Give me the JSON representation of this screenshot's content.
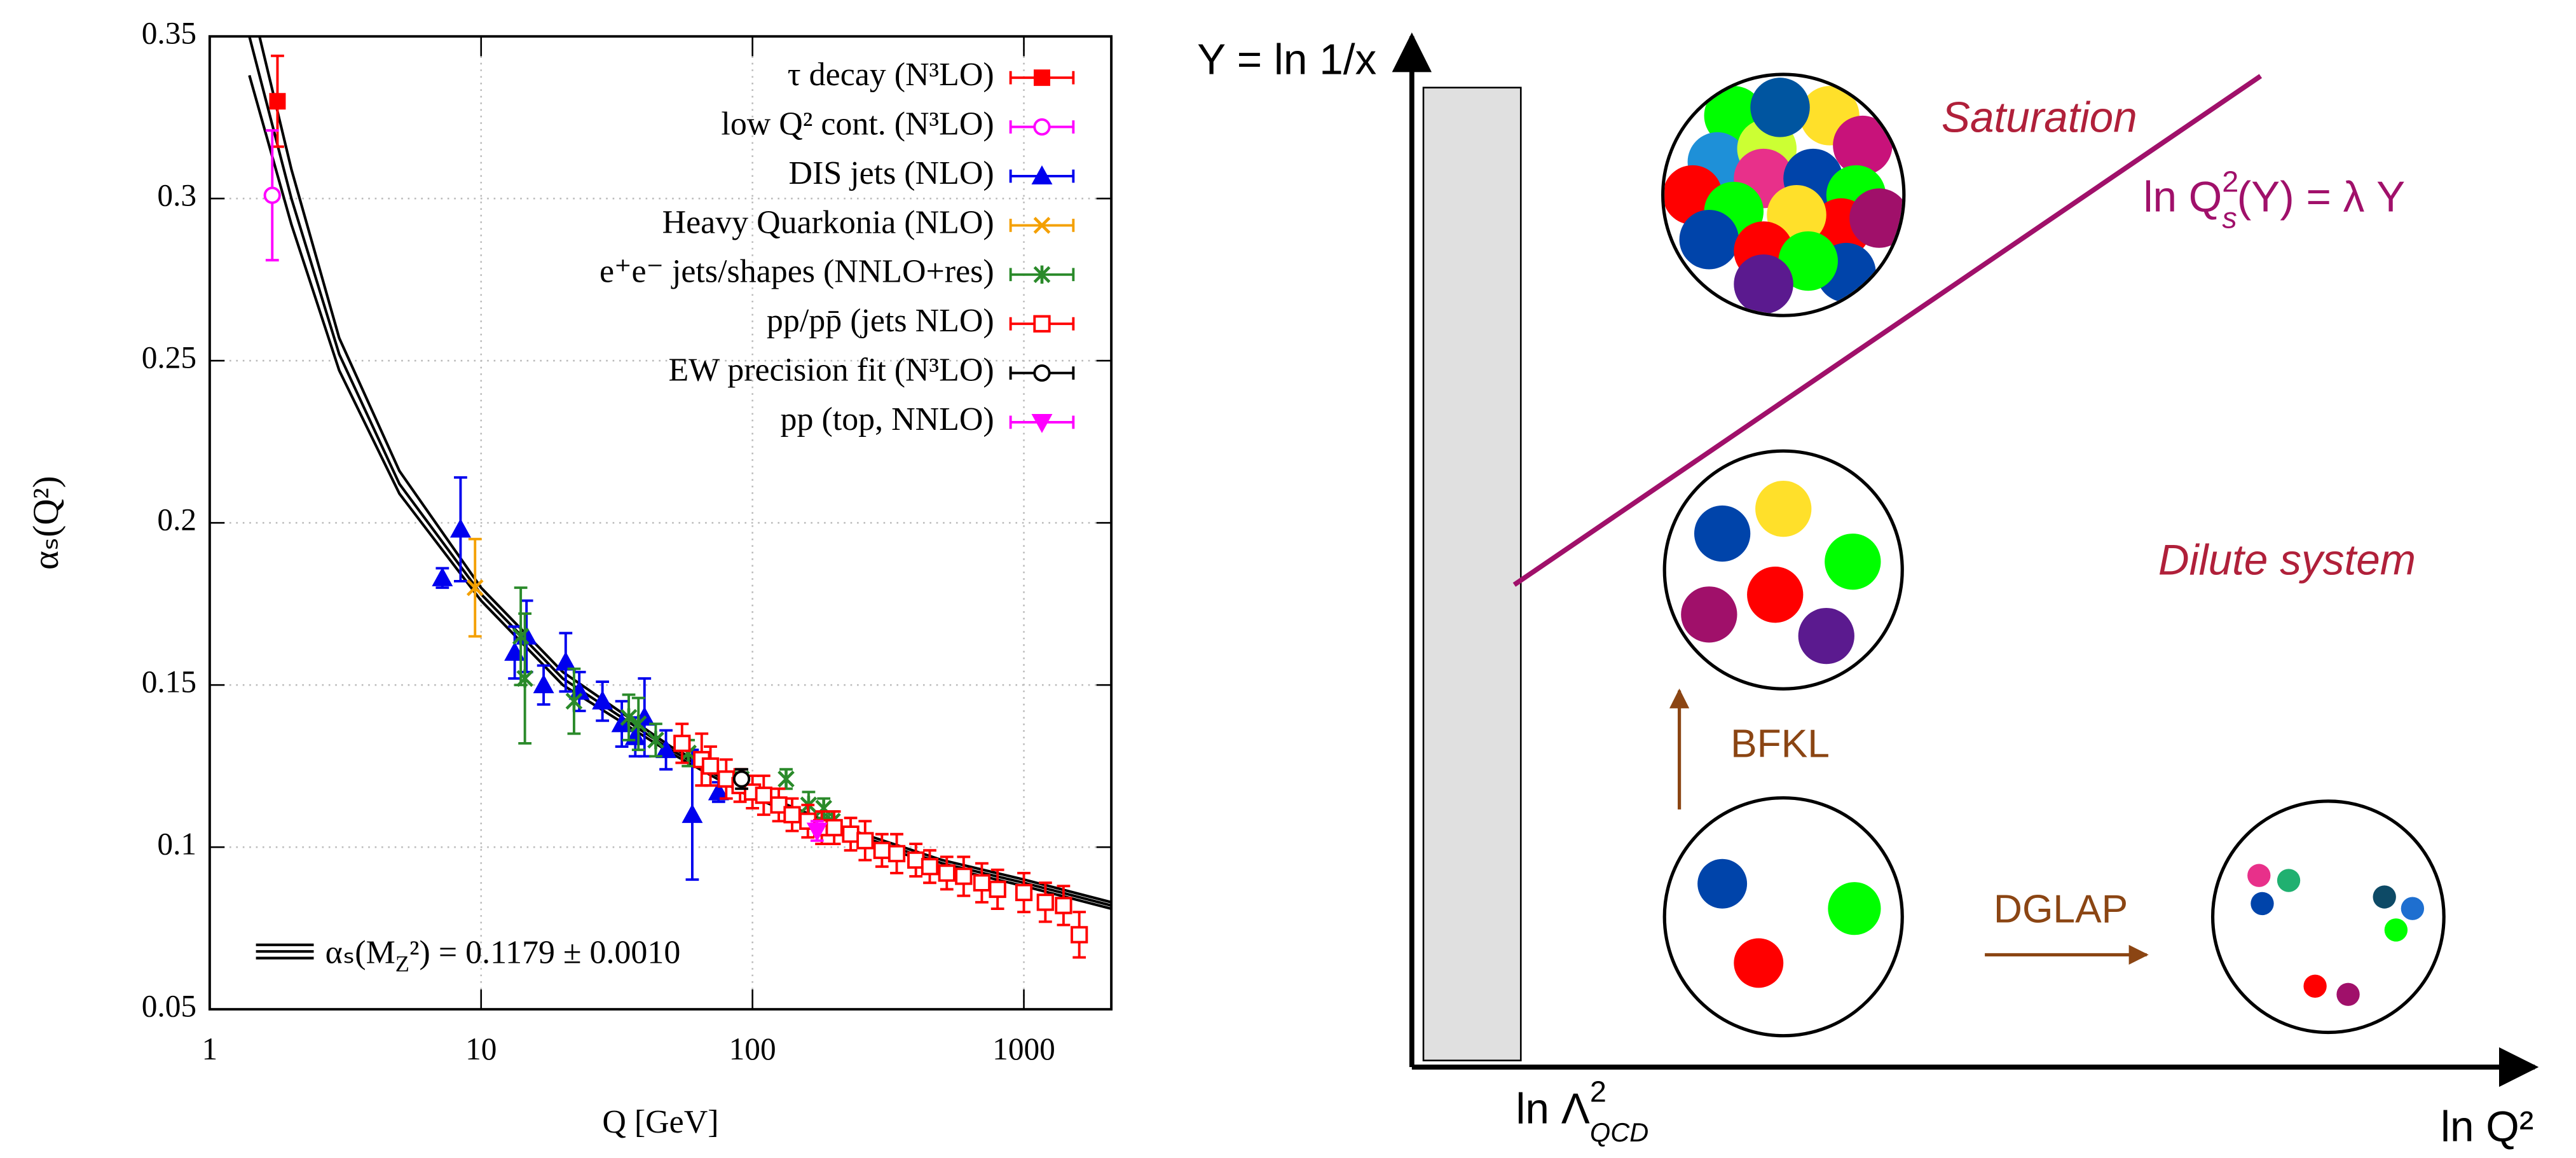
{
  "chart_data": {
    "type": "scatter",
    "x_label": "Q [GeV]",
    "y_label": "αₛ(Q²)",
    "xscale": "log",
    "xlim": [
      1,
      2100
    ],
    "ylim": [
      0.05,
      0.35
    ],
    "xticks": [
      1,
      10,
      100,
      1000
    ],
    "yticks": [
      0.05,
      0.1,
      0.15,
      0.2,
      0.25,
      0.3,
      0.35
    ],
    "grid": true,
    "legend": "top-right",
    "series": [
      {
        "name": "τ decay (N³LO)",
        "color": "#ff0000",
        "marker": "square-filled",
        "x": [
          1.777
        ],
        "values": [
          0.33
        ],
        "errors": [
          0.014
        ]
      },
      {
        "name": "low Q² cont. (N³LO)",
        "color": "#ff00ff",
        "marker": "circle-open",
        "x": [
          1.7
        ],
        "values": [
          0.301
        ],
        "errors": [
          0.02
        ]
      },
      {
        "name": "DIS jets (NLO)",
        "color": "#0000ee",
        "marker": "triangle-filled",
        "x": [
          7.2,
          8.4,
          13.3,
          14.7,
          17,
          20.5,
          23,
          28,
          33,
          37,
          40,
          48,
          60,
          75
        ],
        "values": [
          0.183,
          0.198,
          0.16,
          0.165,
          0.15,
          0.157,
          0.148,
          0.145,
          0.138,
          0.134,
          0.14,
          0.13,
          0.11,
          0.117
        ],
        "errors": [
          0.003,
          0.016,
          0.008,
          0.011,
          0.006,
          0.009,
          0.006,
          0.006,
          0.007,
          0.006,
          0.012,
          0.006,
          0.02,
          0.003
        ]
      },
      {
        "name": "Heavy Quarkonia (NLO)",
        "color": "#f4a000",
        "marker": "x",
        "x": [
          9.5
        ],
        "values": [
          0.18
        ],
        "errors": [
          0.015
        ]
      },
      {
        "name": "e⁺e⁻ jets/shapes (NNLO+res)",
        "color": "#2a8a2a",
        "marker": "asterisk",
        "x": [
          14,
          14.5,
          22,
          35,
          38,
          44,
          58,
          91,
          133,
          161,
          183,
          197
        ],
        "values": [
          0.165,
          0.152,
          0.145,
          0.14,
          0.138,
          0.133,
          0.129,
          0.121,
          0.121,
          0.113,
          0.112,
          0.108
        ],
        "errors": [
          0.015,
          0.02,
          0.01,
          0.007,
          0.008,
          0.005,
          0.004,
          0.002,
          0.003,
          0.004,
          0.003,
          0.003
        ]
      },
      {
        "name": "pp/pp̄ (jets NLO)",
        "color": "#ff0000",
        "marker": "square-open",
        "x": [
          55,
          65,
          70,
          80,
          90,
          100,
          110,
          125,
          140,
          160,
          180,
          200,
          230,
          260,
          300,
          340,
          400,
          450,
          520,
          600,
          700,
          800,
          1000,
          1200,
          1400,
          1600
        ],
        "values": [
          0.132,
          0.127,
          0.125,
          0.121,
          0.119,
          0.117,
          0.116,
          0.113,
          0.11,
          0.108,
          0.106,
          0.106,
          0.104,
          0.102,
          0.099,
          0.098,
          0.096,
          0.094,
          0.092,
          0.091,
          0.089,
          0.087,
          0.086,
          0.083,
          0.082,
          0.073
        ],
        "errors": [
          0.006,
          0.008,
          0.006,
          0.006,
          0.005,
          0.005,
          0.006,
          0.005,
          0.005,
          0.005,
          0.005,
          0.005,
          0.005,
          0.006,
          0.005,
          0.006,
          0.005,
          0.005,
          0.005,
          0.006,
          0.006,
          0.006,
          0.006,
          0.006,
          0.006,
          0.007
        ]
      },
      {
        "name": "EW precision fit (N³LO)",
        "color": "#000000",
        "marker": "circle-open",
        "x": [
          91.19
        ],
        "values": [
          0.121
        ],
        "errors": [
          0.003
        ]
      },
      {
        "name": "pp (top, NNLO)",
        "color": "#ff00ff",
        "marker": "triangle-down-filled",
        "x": [
          173
        ],
        "values": [
          0.105
        ],
        "errors": [
          0.003
        ]
      }
    ],
    "curve": {
      "label": [
        "αₛ(M",
        "Z",
        "²) = 0.1179 ± 0.0010"
      ],
      "color": "#000000",
      "x": [
        1.4,
        2,
        3,
        5,
        10,
        20,
        50,
        91.19,
        200,
        500,
        1000,
        2100
      ],
      "lower": [
        0.338,
        0.292,
        0.247,
        0.209,
        0.176,
        0.15,
        0.129,
        0.1169,
        0.105,
        0.094,
        0.088,
        0.081
      ],
      "center": [
        0.35,
        0.3,
        0.252,
        0.212,
        0.178,
        0.152,
        0.13,
        0.1179,
        0.106,
        0.095,
        0.089,
        0.082
      ],
      "upper": [
        0.363,
        0.309,
        0.257,
        0.216,
        0.18,
        0.154,
        0.131,
        0.1189,
        0.107,
        0.096,
        0.09,
        0.083
      ]
    }
  },
  "diagram": {
    "y_axis_label": "Y = ln 1/x",
    "x_axis_label": "ln Q²",
    "x_marker": [
      "ln Λ",
      "2",
      "QCD"
    ],
    "saturation": "Saturation",
    "dilute": "Dilute system",
    "saturation_line": [
      "ln Q",
      "2",
      "s",
      "(Y) = λ Y"
    ],
    "bfkl": "BFKL",
    "dglap": "DGLAP"
  }
}
